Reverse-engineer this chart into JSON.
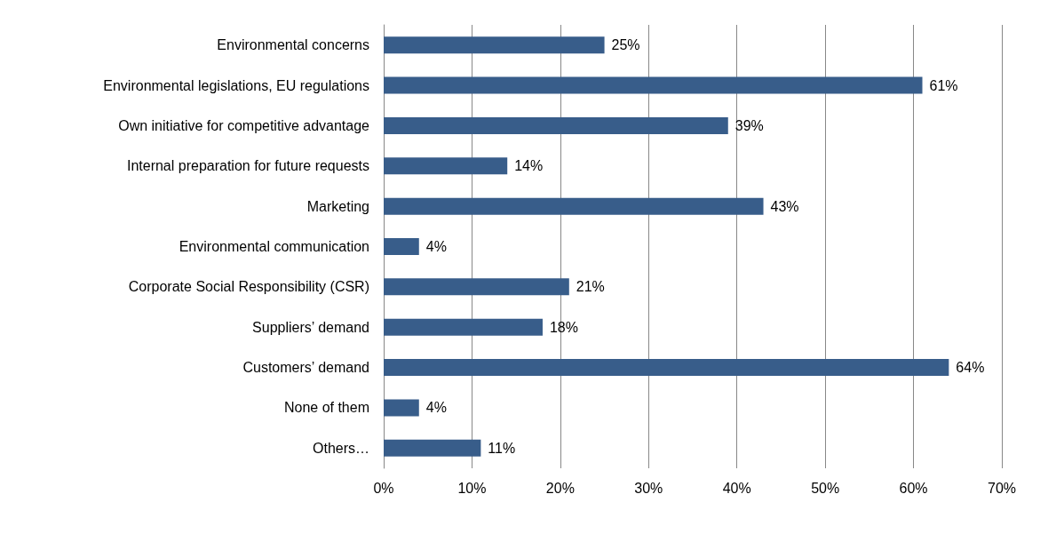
{
  "chart_data": {
    "type": "bar",
    "orientation": "horizontal",
    "categories": [
      "Environmental concerns",
      "Environmental legislations, EU regulations",
      "Own initiative for competitive advantage",
      "Internal preparation for future requests",
      "Marketing",
      "Environmental communication",
      "Corporate Social Responsibility (CSR)",
      "Suppliers’ demand",
      "Customers’ demand",
      "None of them",
      "Others…"
    ],
    "values": [
      25,
      61,
      39,
      14,
      43,
      4,
      21,
      18,
      64,
      4,
      11
    ],
    "value_labels": [
      "25%",
      "61%",
      "39%",
      "14%",
      "43%",
      "4%",
      "21%",
      "18%",
      "64%",
      "4%",
      "11%"
    ],
    "color": "#385d8a",
    "xlim": [
      0,
      70
    ],
    "xticks": [
      {
        "value": 0,
        "label": "0%"
      },
      {
        "value": 10,
        "label": "10%"
      },
      {
        "value": 20,
        "label": "20%"
      },
      {
        "value": 30,
        "label": "30%"
      },
      {
        "value": 40,
        "label": "40%"
      },
      {
        "value": 50,
        "label": "50%"
      },
      {
        "value": 60,
        "label": "60%"
      },
      {
        "value": 70,
        "label": "70%"
      }
    ],
    "grid": "x"
  }
}
